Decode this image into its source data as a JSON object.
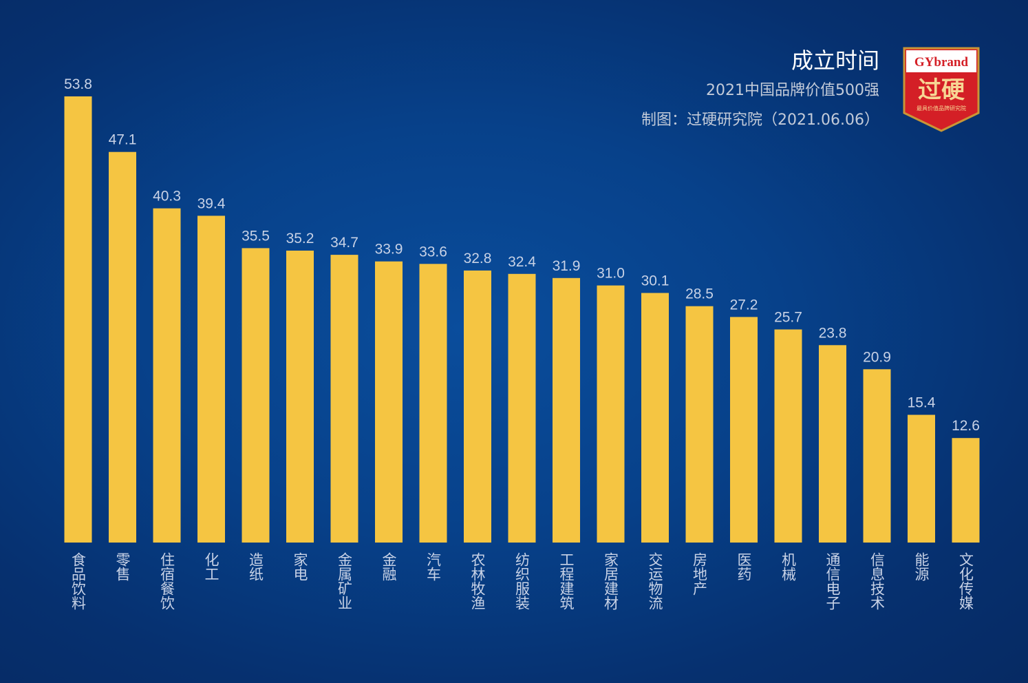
{
  "header": {
    "title": "成立时间",
    "subtitle": "2021中国品牌价值500强",
    "credit": "制图：过硬研究院（2021.06.06）"
  },
  "logo": {
    "brand": "GYbrand",
    "name": "过硬",
    "tagline": "最具价值品牌研究院"
  },
  "colors": {
    "bar": "#f5c542",
    "value_label": "#c8d2e6",
    "category_label": "#c8d2e6",
    "logo_red": "#d41f26",
    "logo_gold": "#c99636"
  },
  "chart_data": {
    "type": "bar",
    "categories": [
      "食品饮料",
      "零售",
      "住宿餐饮",
      "化工",
      "造纸",
      "家电",
      "金属矿业",
      "金融",
      "汽车",
      "农林牧渔",
      "纺织服装",
      "工程建筑",
      "家居建材",
      "交运物流",
      "房地产",
      "医药",
      "机械",
      "通信电子",
      "信息技术",
      "能源",
      "文化传媒"
    ],
    "values": [
      53.8,
      47.1,
      40.3,
      39.4,
      35.5,
      35.2,
      34.7,
      33.9,
      33.6,
      32.8,
      32.4,
      31.9,
      31.0,
      30.1,
      28.5,
      27.2,
      25.7,
      23.8,
      20.9,
      15.4,
      12.6
    ],
    "labels": [
      "53.8",
      "47.1",
      "40.3",
      "39.4",
      "35.5",
      "35.2",
      "34.7",
      "33.9",
      "33.6",
      "32.8",
      "32.4",
      "31.9",
      "31.0",
      "30.1",
      "28.5",
      "27.2",
      "25.7",
      "23.8",
      "20.9",
      "15.4",
      "12.6"
    ],
    "title": "成立时间",
    "ylim": [
      0,
      53.8
    ],
    "grid": false,
    "legend": "none"
  }
}
